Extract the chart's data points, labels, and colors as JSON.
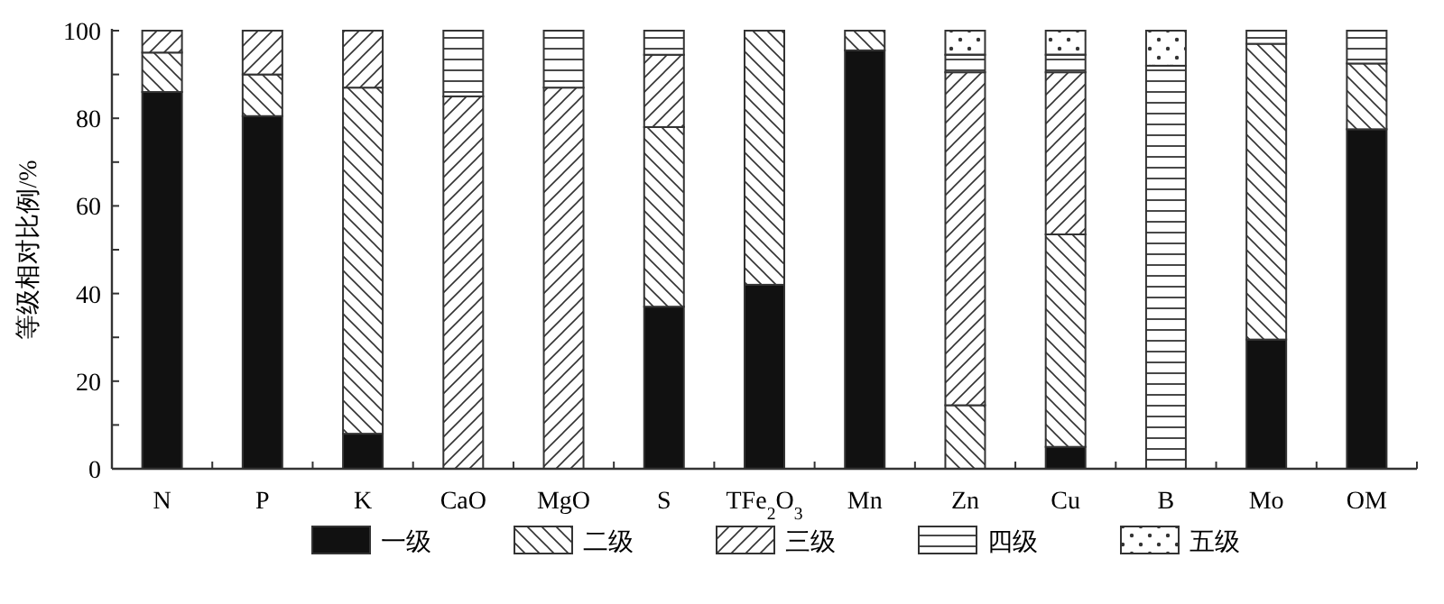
{
  "chart_data": {
    "type": "bar",
    "stacked": true,
    "ylabel": "等级相对比例/%",
    "legend": "bottom",
    "categories": [
      "N",
      "P",
      "K",
      "CaO",
      "MgO",
      "S",
      "TFe$_{2}$O$_{3}$",
      "Mn",
      "Zn",
      "Cu",
      "B",
      "Mo",
      "OM"
    ],
    "series": [
      {
        "name": "一级",
        "color": "#111111",
        "values": [
          86,
          80.5,
          8,
          0,
          0,
          37,
          42,
          95.5,
          0,
          5,
          0,
          29.5,
          77.5
        ]
      },
      {
        "name": "二级",
        "color": "#333333",
        "values": [
          9,
          9.5,
          79,
          0,
          0,
          41,
          58,
          4.5,
          14.5,
          48.5,
          0,
          67.5,
          15
        ]
      },
      {
        "name": "三级",
        "color": "#333333",
        "values": [
          5,
          10,
          13,
          85,
          87,
          16.5,
          0,
          0,
          76,
          37,
          0,
          0,
          0
        ]
      },
      {
        "name": "四级",
        "color": "#333333",
        "values": [
          0,
          0,
          0,
          15,
          13,
          5.5,
          0,
          0,
          4,
          4,
          92,
          3,
          7.5
        ]
      },
      {
        "name": "五级",
        "color": "#333333",
        "values": [
          0,
          0,
          0,
          0,
          0,
          0,
          0,
          0,
          5.5,
          5.5,
          8,
          0,
          0
        ]
      }
    ],
    "ylim": [
      0,
      100
    ],
    "yticks": [
      0,
      {
        "value": 10,
        "label": null
      },
      20,
      {
        "value": 30,
        "label": null
      },
      40,
      {
        "value": 50,
        "label": null
      },
      60,
      {
        "value": 70,
        "label": null
      },
      80,
      {
        "value": 90,
        "label": null
      },
      100
    ]
  }
}
